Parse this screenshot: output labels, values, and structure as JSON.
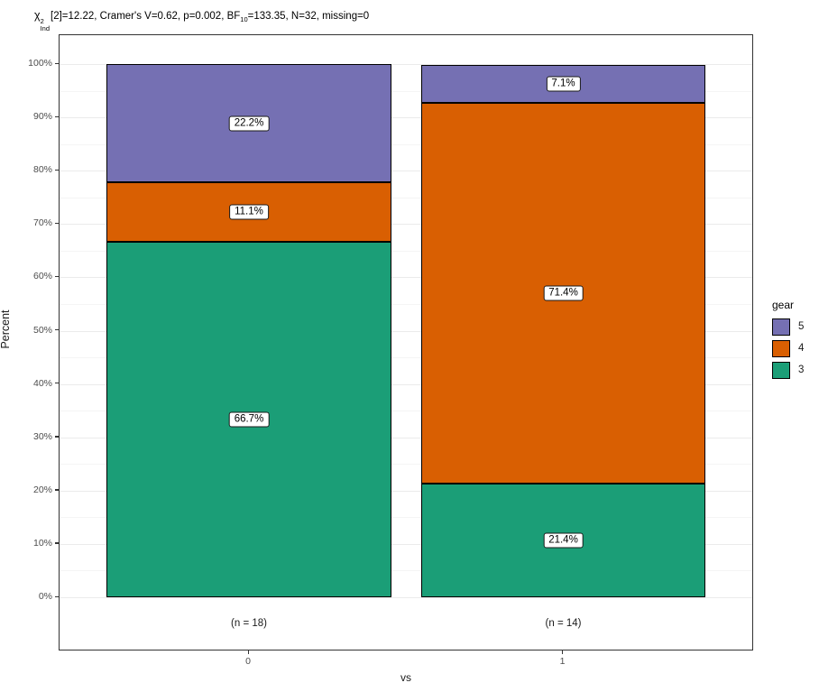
{
  "title": {
    "chi": "χ",
    "chi_sup": "2",
    "chi_sub": "Ind",
    "part1": "[2]=12.22, Cramer's V=0.62, p=0.002, BF",
    "bf_sub": "10",
    "part2": "=133.35, N=32, missing=0"
  },
  "chart_data": {
    "type": "bar",
    "stacking": "percent",
    "title": "χ2Ind[2]=12.22, Cramer's V=0.62, p=0.002, BF10=133.35, N=32, missing=0",
    "xlabel": "vs",
    "ylabel": "Percent",
    "categories": [
      "0",
      "1"
    ],
    "category_n_labels": [
      "(n = 18)",
      "(n = 14)"
    ],
    "series": [
      {
        "name": "3",
        "color": "#1b9e77",
        "values": [
          66.7,
          21.4
        ],
        "labels": [
          "66.7%",
          "21.4%"
        ]
      },
      {
        "name": "4",
        "color": "#d95f02",
        "values": [
          11.1,
          71.4
        ],
        "labels": [
          "11.1%",
          "71.4%"
        ]
      },
      {
        "name": "5",
        "color": "#7570b3",
        "values": [
          22.2,
          7.1
        ],
        "labels": [
          "22.2%",
          "7.1%"
        ]
      }
    ],
    "legend": {
      "title": "gear",
      "position": "right",
      "entries_top_to_bottom": [
        "5",
        "4",
        "3"
      ]
    },
    "y_axis": {
      "ticks": [
        0,
        10,
        20,
        30,
        40,
        50,
        60,
        70,
        80,
        90,
        100
      ],
      "tick_suffix": "%",
      "minor_step": 5,
      "ylim": [
        0,
        100
      ]
    },
    "grid": true
  },
  "colors": {
    "grid_major": "#ebebeb",
    "grid_minor": "#f5f5f5",
    "panel_border": "#333333",
    "axis_text": "#4d4d4d",
    "text": "#000000",
    "label_box_bg": "#ffffff"
  }
}
